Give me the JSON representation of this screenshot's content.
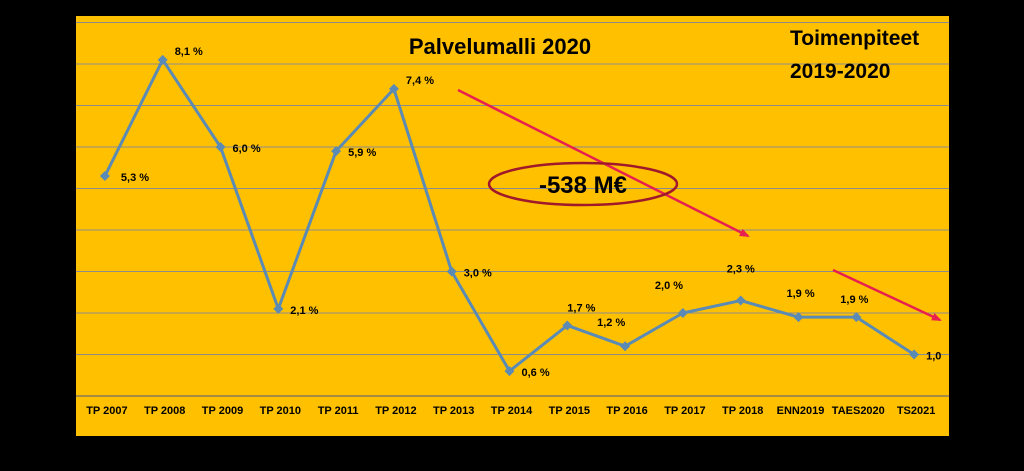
{
  "chart_data": {
    "type": "line",
    "title": "Palvelumalli 2020",
    "side_title_lines": [
      "Toimenpiteet",
      "2019-2020"
    ],
    "categories": [
      "TP 2007",
      "TP 2008",
      "TP 2009",
      "TP 2010",
      "TP 2011",
      "TP 2012",
      "TP 2013",
      "TP 2014",
      "TP 2015",
      "TP 2016",
      "TP 2017",
      "TP 2018",
      "ENN2019",
      "TAES2020",
      "TS2021"
    ],
    "series": [
      {
        "values": [
          5.3,
          8.1,
          6.0,
          2.1,
          5.9,
          7.4,
          3.0,
          0.6,
          1.7,
          1.2,
          2.0,
          2.3,
          1.9,
          1.9,
          1.0
        ],
        "labels": [
          "5,3 %",
          "8,1 %",
          "6,0 %",
          "2,1 %",
          "5,9 %",
          "7,4 %",
          "3,0 %",
          "0,6 %",
          "1,7 %",
          "1,2 %",
          "2,0 %",
          "2,3 %",
          "1,9 %",
          "1,9 %",
          "1,0"
        ]
      }
    ],
    "ylim": [
      0,
      9
    ],
    "grid": true,
    "annotation": "-538 M€",
    "colors": {
      "plot_background": "#FFC000",
      "line": "#5B8BB5",
      "arrow": "#E8204F",
      "ellipse": "#A0192B",
      "grid": "#8C8C8C"
    }
  }
}
